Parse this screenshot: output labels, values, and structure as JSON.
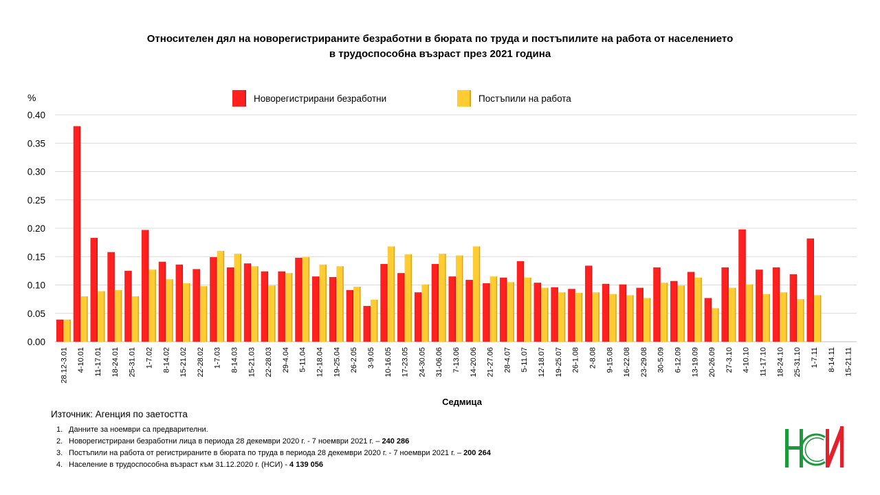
{
  "title": {
    "line1": "Относителен дял на новорегистрираните безработни в бюрата по труда и постъпилите на работа от населението",
    "line2": "в трудоспособна възраст през 2021 година"
  },
  "chart_data": {
    "type": "bar",
    "ylabel": "%",
    "xlabel": "Седмица",
    "ylim": [
      0,
      0.4
    ],
    "yticks": [
      "0.00",
      "0.05",
      "0.10",
      "0.15",
      "0.20",
      "0.25",
      "0.30",
      "0.35",
      "0.40"
    ],
    "grid": true,
    "legend_position": "top-center",
    "categories": [
      "28.12-3.01",
      "4-10.01",
      "11-17.01",
      "18-24.01",
      "25-31.01",
      "1-7.02",
      "8-14.02",
      "15-21.02",
      "22-28.02",
      "1-7.03",
      "8-14.03",
      "15-21.03",
      "22-28.03",
      "29-4.04",
      "5-11.04",
      "12-18.04",
      "19-25.04",
      "26-2.05",
      "3-9.05",
      "10-16.05",
      "17-23.05",
      "24-30.05",
      "31-06.06",
      "7-13.06",
      "14-20.06",
      "21-27.06",
      "28-4.07",
      "5-11.07",
      "12-18.07",
      "19-25.07",
      "26-1.08",
      "2-8.08",
      "9-15.08",
      "16-22.08",
      "23-29.08",
      "30-5.09",
      "6-12.09",
      "13-19.09",
      "20-26.09",
      "27-3.10",
      "4-10.10",
      "11-17.10",
      "18-24.10",
      "25-31.10",
      "1-7.11",
      "8-14.11",
      "15-21.11"
    ],
    "series": [
      {
        "name": "Новорегистрирани безработни",
        "color": "#ff2020",
        "values": [
          0.039,
          0.38,
          0.183,
          0.158,
          0.125,
          0.197,
          0.141,
          0.136,
          0.128,
          0.149,
          0.131,
          0.138,
          0.124,
          0.124,
          0.148,
          0.115,
          0.114,
          0.091,
          0.063,
          0.137,
          0.121,
          0.087,
          0.137,
          0.115,
          0.109,
          0.103,
          0.113,
          0.142,
          0.104,
          0.096,
          0.093,
          0.134,
          0.102,
          0.101,
          0.095,
          0.131,
          0.107,
          0.123,
          0.077,
          0.131,
          0.198,
          0.127,
          0.131,
          0.119,
          0.182,
          null,
          null
        ]
      },
      {
        "name": "Постъпили на работа",
        "color": "#ffcc33",
        "values": [
          0.039,
          0.08,
          0.089,
          0.091,
          0.08,
          0.127,
          0.11,
          0.103,
          0.098,
          0.16,
          0.155,
          0.133,
          0.099,
          0.121,
          0.149,
          0.136,
          0.133,
          0.097,
          0.074,
          0.168,
          0.154,
          0.101,
          0.155,
          0.152,
          0.168,
          0.115,
          0.105,
          0.113,
          0.095,
          0.087,
          0.086,
          0.087,
          0.084,
          0.082,
          0.077,
          0.104,
          0.099,
          0.113,
          0.059,
          0.095,
          0.101,
          0.084,
          0.087,
          0.075,
          0.082,
          null,
          null
        ]
      }
    ]
  },
  "source": "Източник: Агенция по заетостта",
  "notes": [
    {
      "num": "1.",
      "text": "Данните за ноември  са предварителни.",
      "bold": ""
    },
    {
      "num": "2.",
      "text": "Новорегистрирани безработни лица в периода 28 декември  2020 г. - 7 ноември 2021 г. – ",
      "bold": "240 286"
    },
    {
      "num": "3.",
      "text": "Постъпили на работа от регистрираните в бюрата по труда в периода 28 декември  2020 г. - 7 ноември  2021 г. – ",
      "bold": "200 264"
    },
    {
      "num": "4.",
      "text": "Население в трудоспособна възраст към 31.12.2020 г. (НСИ)  - ",
      "bold": "4 139 056"
    }
  ],
  "logo": {
    "text": "НСИ",
    "colors": {
      "green": "#1a9a3a",
      "red": "#e4202a"
    }
  }
}
